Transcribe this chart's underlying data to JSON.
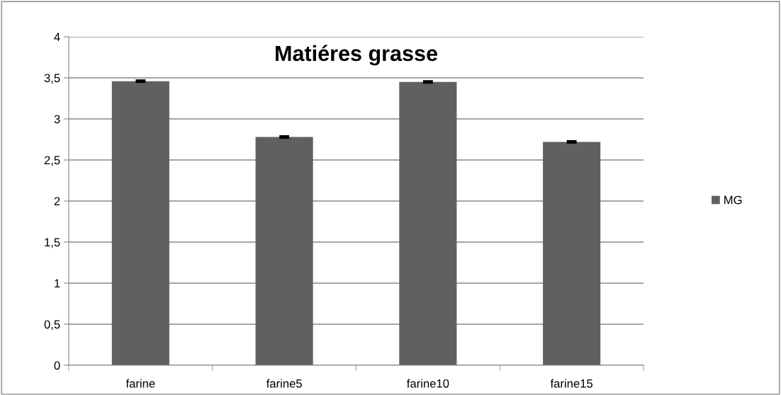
{
  "chart_data": {
    "type": "bar",
    "title": "Matiéres grasse",
    "categories": [
      "farine",
      "farine5",
      "farine10",
      "farine15"
    ],
    "series": [
      {
        "name": "MG",
        "color": "#606060",
        "values": [
          3.46,
          2.78,
          3.45,
          2.72
        ],
        "errors": [
          0.01,
          0.01,
          0.01,
          0.01
        ]
      }
    ],
    "ylim": [
      0,
      4
    ],
    "yticks": [
      {
        "value": 0,
        "label": "0"
      },
      {
        "value": 0.5,
        "label": "0,5"
      },
      {
        "value": 1,
        "label": "1"
      },
      {
        "value": 1.5,
        "label": "1,5"
      },
      {
        "value": 2,
        "label": "2"
      },
      {
        "value": 2.5,
        "label": "2,5"
      },
      {
        "value": 3,
        "label": "3"
      },
      {
        "value": 3.5,
        "label": "3,5"
      },
      {
        "value": 4,
        "label": "4"
      }
    ],
    "grid": "y",
    "legend": "right"
  }
}
